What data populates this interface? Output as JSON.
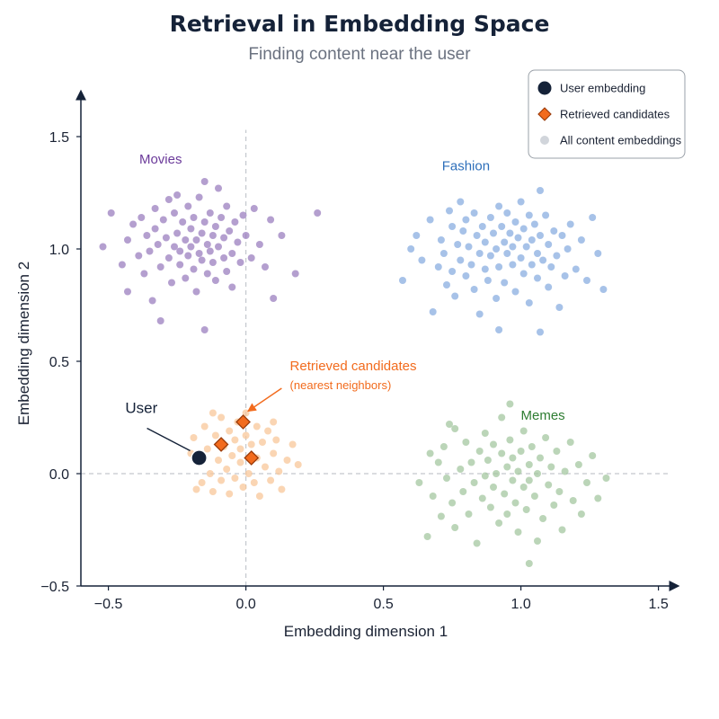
{
  "chart_data": {
    "type": "scatter",
    "title": "Retrieval in Embedding Space",
    "subtitle": "Finding content near the user",
    "xlabel": "Embedding dimension 1",
    "ylabel": "Embedding dimension 2",
    "xlim": [
      -0.6,
      1.57
    ],
    "ylim": [
      -0.5,
      1.7
    ],
    "xticks": [
      -0.5,
      0.0,
      0.5,
      1.0,
      1.5
    ],
    "xtick_labels": [
      "−0.5",
      "0.0",
      "0.5",
      "1.0",
      "1.5"
    ],
    "yticks": [
      -0.5,
      0.0,
      0.5,
      1.0,
      1.5
    ],
    "ytick_labels": [
      "−0.5",
      "0.0",
      "0.5",
      "1.0",
      "1.5"
    ],
    "reference_lines": {
      "x": 0,
      "y": 0,
      "style": "dashed"
    },
    "grid": false,
    "legend_position": "top-right",
    "legend": [
      {
        "label": "User embedding",
        "marker": "circle",
        "color": "#152238"
      },
      {
        "label": "Retrieved candidates",
        "marker": "diamond",
        "color": "#f26b1d"
      },
      {
        "label": "All content embeddings",
        "marker": "circle",
        "color": "#d1d5db"
      }
    ],
    "clusters": [
      {
        "name": "Movies",
        "color": "#9b7fbf",
        "label_at": [
          -0.31,
          1.38
        ],
        "label_color": "#6b3a9a",
        "points": [
          [
            -0.52,
            1.01
          ],
          [
            -0.49,
            1.16
          ],
          [
            -0.45,
            0.93
          ],
          [
            -0.43,
            1.04
          ],
          [
            -0.43,
            0.81
          ],
          [
            -0.41,
            1.11
          ],
          [
            -0.39,
            0.97
          ],
          [
            -0.38,
            1.14
          ],
          [
            -0.37,
            0.89
          ],
          [
            -0.36,
            1.06
          ],
          [
            -0.35,
            0.99
          ],
          [
            -0.34,
            0.77
          ],
          [
            -0.33,
            1.18
          ],
          [
            -0.33,
            1.09
          ],
          [
            -0.32,
            1.02
          ],
          [
            -0.31,
            0.92
          ],
          [
            -0.31,
            0.68
          ],
          [
            -0.3,
            1.13
          ],
          [
            -0.29,
            1.05
          ],
          [
            -0.28,
            0.96
          ],
          [
            -0.28,
            1.22
          ],
          [
            -0.27,
            0.85
          ],
          [
            -0.26,
            1.16
          ],
          [
            -0.26,
            1.01
          ],
          [
            -0.25,
            1.07
          ],
          [
            -0.24,
            0.93
          ],
          [
            -0.24,
            0.99
          ],
          [
            -0.23,
            1.12
          ],
          [
            -0.22,
            1.04
          ],
          [
            -0.22,
            0.87
          ],
          [
            -0.21,
            1.19
          ],
          [
            -0.21,
            0.97
          ],
          [
            -0.2,
            1.09
          ],
          [
            -0.2,
            1.01
          ],
          [
            -0.19,
            0.91
          ],
          [
            -0.19,
            1.14
          ],
          [
            -0.18,
            1.04
          ],
          [
            -0.18,
            0.81
          ],
          [
            -0.17,
            0.98
          ],
          [
            -0.17,
            1.23
          ],
          [
            -0.16,
            1.07
          ],
          [
            -0.16,
            0.95
          ],
          [
            -0.15,
            1.3
          ],
          [
            -0.15,
            1.12
          ],
          [
            -0.14,
            1.02
          ],
          [
            -0.14,
            0.89
          ],
          [
            -0.13,
            0.99
          ],
          [
            -0.13,
            1.16
          ],
          [
            -0.12,
            1.06
          ],
          [
            -0.12,
            0.94
          ],
          [
            -0.11,
            1.1
          ],
          [
            -0.11,
            0.86
          ],
          [
            -0.1,
            1.01
          ],
          [
            -0.1,
            1.27
          ],
          [
            -0.09,
            1.14
          ],
          [
            -0.08,
            0.96
          ],
          [
            -0.08,
            1.05
          ],
          [
            -0.07,
            0.9
          ],
          [
            -0.07,
            1.19
          ],
          [
            -0.06,
            1.08
          ],
          [
            -0.05,
            0.98
          ],
          [
            -0.05,
            0.83
          ],
          [
            -0.04,
            1.12
          ],
          [
            -0.03,
            1.03
          ],
          [
            -0.02,
            0.94
          ],
          [
            -0.01,
            1.15
          ],
          [
            0.0,
            1.06
          ],
          [
            0.02,
            0.96
          ],
          [
            0.03,
            1.18
          ],
          [
            0.05,
            1.02
          ],
          [
            0.07,
            0.92
          ],
          [
            0.09,
            1.13
          ],
          [
            0.1,
            0.78
          ],
          [
            0.13,
            1.06
          ],
          [
            0.18,
            0.89
          ],
          [
            0.26,
            1.16
          ],
          [
            -0.15,
            0.64
          ],
          [
            -0.25,
            1.24
          ]
        ]
      },
      {
        "name": "Fashion",
        "color": "#8aaee0",
        "label_at": [
          0.8,
          1.35
        ],
        "label_color": "#2e6fba",
        "points": [
          [
            0.57,
            0.86
          ],
          [
            0.6,
            1.0
          ],
          [
            0.62,
            1.06
          ],
          [
            0.64,
            0.95
          ],
          [
            0.67,
            1.13
          ],
          [
            0.68,
            0.72
          ],
          [
            0.7,
            0.92
          ],
          [
            0.71,
            1.04
          ],
          [
            0.72,
            0.98
          ],
          [
            0.73,
            0.84
          ],
          [
            0.74,
            1.17
          ],
          [
            0.75,
            1.1
          ],
          [
            0.75,
            0.9
          ],
          [
            0.76,
            0.79
          ],
          [
            0.77,
            1.02
          ],
          [
            0.78,
            0.95
          ],
          [
            0.78,
            1.21
          ],
          [
            0.79,
            1.08
          ],
          [
            0.8,
            0.88
          ],
          [
            0.8,
            1.13
          ],
          [
            0.81,
            1.01
          ],
          [
            0.82,
            0.93
          ],
          [
            0.83,
            0.82
          ],
          [
            0.83,
            1.16
          ],
          [
            0.84,
            1.06
          ],
          [
            0.85,
            0.98
          ],
          [
            0.85,
            0.71
          ],
          [
            0.86,
            1.1
          ],
          [
            0.87,
            0.91
          ],
          [
            0.87,
            1.03
          ],
          [
            0.88,
            0.86
          ],
          [
            0.89,
            1.14
          ],
          [
            0.89,
            0.97
          ],
          [
            0.9,
            1.07
          ],
          [
            0.91,
            1.0
          ],
          [
            0.91,
            0.78
          ],
          [
            0.92,
            1.19
          ],
          [
            0.92,
            0.92
          ],
          [
            0.93,
            1.1
          ],
          [
            0.94,
            1.03
          ],
          [
            0.94,
            0.85
          ],
          [
            0.95,
            0.98
          ],
          [
            0.95,
            1.16
          ],
          [
            0.96,
            1.07
          ],
          [
            0.97,
            0.93
          ],
          [
            0.97,
            1.01
          ],
          [
            0.98,
            0.81
          ],
          [
            0.98,
            1.12
          ],
          [
            0.99,
            1.05
          ],
          [
            1.0,
            0.96
          ],
          [
            1.0,
            1.21
          ],
          [
            1.01,
            0.89
          ],
          [
            1.01,
            1.09
          ],
          [
            1.02,
            1.01
          ],
          [
            1.03,
            0.76
          ],
          [
            1.03,
            1.15
          ],
          [
            1.04,
            1.04
          ],
          [
            1.04,
            0.93
          ],
          [
            1.05,
            1.11
          ],
          [
            1.06,
            0.98
          ],
          [
            1.06,
            0.87
          ],
          [
            1.07,
            1.06
          ],
          [
            1.07,
            1.26
          ],
          [
            1.08,
            0.95
          ],
          [
            1.09,
            1.15
          ],
          [
            1.1,
            1.02
          ],
          [
            1.1,
            0.83
          ],
          [
            1.11,
            0.92
          ],
          [
            1.12,
            1.08
          ],
          [
            1.13,
            0.97
          ],
          [
            1.14,
            0.74
          ],
          [
            1.15,
            1.06
          ],
          [
            1.16,
            0.88
          ],
          [
            1.17,
            1.0
          ],
          [
            1.18,
            1.11
          ],
          [
            1.2,
            0.91
          ],
          [
            1.22,
            1.04
          ],
          [
            1.24,
            0.86
          ],
          [
            1.26,
            1.14
          ],
          [
            1.28,
            0.98
          ],
          [
            1.3,
            0.82
          ],
          [
            1.07,
            0.63
          ],
          [
            0.92,
            0.64
          ]
        ]
      },
      {
        "name": "Memes",
        "color": "#a4c7a0",
        "label_at": [
          1.08,
          0.24
        ],
        "label_color": "#2e7d32",
        "points": [
          [
            0.63,
            -0.04
          ],
          [
            0.66,
            -0.28
          ],
          [
            0.67,
            0.09
          ],
          [
            0.68,
            -0.1
          ],
          [
            0.7,
            0.05
          ],
          [
            0.71,
            -0.19
          ],
          [
            0.72,
            0.12
          ],
          [
            0.73,
            -0.02
          ],
          [
            0.75,
            -0.13
          ],
          [
            0.76,
            0.2
          ],
          [
            0.76,
            -0.24
          ],
          [
            0.78,
            0.02
          ],
          [
            0.79,
            -0.08
          ],
          [
            0.8,
            0.14
          ],
          [
            0.81,
            -0.18
          ],
          [
            0.82,
            0.05
          ],
          [
            0.83,
            -0.04
          ],
          [
            0.84,
            -0.31
          ],
          [
            0.85,
            0.1
          ],
          [
            0.86,
            -0.11
          ],
          [
            0.87,
            0.18
          ],
          [
            0.87,
            -0.01
          ],
          [
            0.88,
            0.06
          ],
          [
            0.89,
            -0.15
          ],
          [
            0.9,
            0.13
          ],
          [
            0.9,
            -0.06
          ],
          [
            0.91,
            0.0
          ],
          [
            0.92,
            -0.22
          ],
          [
            0.93,
            0.09
          ],
          [
            0.93,
            0.25
          ],
          [
            0.94,
            -0.09
          ],
          [
            0.95,
            0.03
          ],
          [
            0.95,
            -0.18
          ],
          [
            0.96,
            0.15
          ],
          [
            0.97,
            -0.03
          ],
          [
            0.97,
            0.07
          ],
          [
            0.98,
            -0.13
          ],
          [
            0.99,
            0.01
          ],
          [
            0.99,
            -0.26
          ],
          [
            1.0,
            0.1
          ],
          [
            1.01,
            -0.06
          ],
          [
            1.01,
            0.19
          ],
          [
            1.02,
            -0.16
          ],
          [
            1.03,
            0.04
          ],
          [
            1.03,
            -0.03
          ],
          [
            1.04,
            0.12
          ],
          [
            1.05,
            -0.1
          ],
          [
            1.06,
            0.0
          ],
          [
            1.06,
            -0.3
          ],
          [
            1.07,
            0.07
          ],
          [
            1.08,
            -0.2
          ],
          [
            1.09,
            0.16
          ],
          [
            1.1,
            -0.05
          ],
          [
            1.11,
            0.03
          ],
          [
            1.12,
            -0.14
          ],
          [
            1.13,
            0.1
          ],
          [
            1.14,
            -0.08
          ],
          [
            1.15,
            -0.25
          ],
          [
            1.16,
            0.01
          ],
          [
            1.18,
            0.14
          ],
          [
            1.19,
            -0.12
          ],
          [
            1.21,
            0.04
          ],
          [
            1.22,
            -0.18
          ],
          [
            1.24,
            -0.04
          ],
          [
            1.26,
            0.08
          ],
          [
            1.28,
            -0.11
          ],
          [
            1.31,
            -0.02
          ],
          [
            0.96,
            0.31
          ],
          [
            1.03,
            -0.4
          ],
          [
            0.74,
            0.22
          ]
        ]
      },
      {
        "name": "",
        "color": "#f8c79a",
        "points": [
          [
            -0.19,
            0.16
          ],
          [
            -0.17,
            0.05
          ],
          [
            -0.16,
            -0.04
          ],
          [
            -0.15,
            0.21
          ],
          [
            -0.14,
            0.11
          ],
          [
            -0.13,
            0.0
          ],
          [
            -0.12,
            -0.08
          ],
          [
            -0.11,
            0.17
          ],
          [
            -0.1,
            0.06
          ],
          [
            -0.09,
            0.25
          ],
          [
            -0.09,
            -0.03
          ],
          [
            -0.08,
            0.12
          ],
          [
            -0.07,
            0.02
          ],
          [
            -0.06,
            0.19
          ],
          [
            -0.06,
            -0.09
          ],
          [
            -0.05,
            0.08
          ],
          [
            -0.04,
            0.15
          ],
          [
            -0.04,
            -0.02
          ],
          [
            -0.03,
            0.23
          ],
          [
            -0.02,
            0.05
          ],
          [
            -0.02,
            0.11
          ],
          [
            -0.01,
            -0.06
          ],
          [
            0.0,
            0.17
          ],
          [
            0.01,
            0.0
          ],
          [
            0.02,
            0.13
          ],
          [
            0.03,
            -0.04
          ],
          [
            0.04,
            0.21
          ],
          [
            0.04,
            0.07
          ],
          [
            0.05,
            -0.1
          ],
          [
            0.06,
            0.14
          ],
          [
            0.07,
            0.03
          ],
          [
            0.08,
            0.19
          ],
          [
            0.09,
            -0.03
          ],
          [
            0.1,
            0.09
          ],
          [
            0.11,
            0.15
          ],
          [
            0.12,
            0.01
          ],
          [
            0.13,
            -0.07
          ],
          [
            0.15,
            0.06
          ],
          [
            0.17,
            0.13
          ],
          [
            0.19,
            0.04
          ],
          [
            -0.2,
            0.09
          ],
          [
            -0.18,
            -0.07
          ],
          [
            -0.12,
            0.27
          ],
          [
            0.0,
            0.27
          ],
          [
            0.1,
            0.23
          ]
        ]
      }
    ],
    "user_embedding": {
      "x": -0.17,
      "y": 0.07,
      "label": "User",
      "label_at": [
        -0.38,
        0.27
      ]
    },
    "retrieved_candidates": [
      {
        "x": -0.09,
        "y": 0.13
      },
      {
        "x": -0.01,
        "y": 0.23
      },
      {
        "x": 0.02,
        "y": 0.07
      }
    ],
    "annotation": {
      "label": "Retrieved candidates",
      "sublabel": "(nearest neighbors)",
      "color": "#f26b1d",
      "text_at": [
        0.16,
        0.46
      ],
      "arrow_from": [
        0.13,
        0.38
      ],
      "arrow_to": [
        0.01,
        0.28
      ]
    }
  }
}
